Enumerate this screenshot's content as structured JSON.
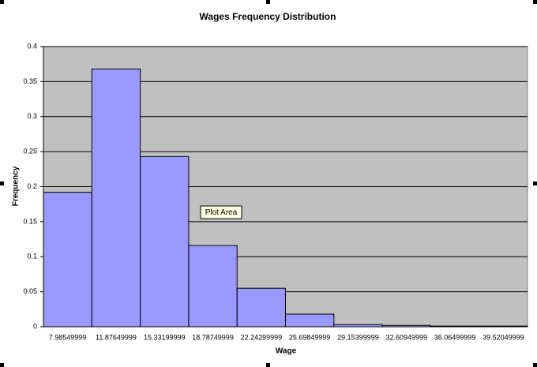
{
  "chart_data": {
    "type": "bar",
    "title": "Wages Frequency Distribution",
    "x_label": "Wage",
    "y_label": "Frequency",
    "categories": [
      "7.98549999",
      "11.87649999",
      "15.33199999",
      "18.78749999",
      "22.24299999",
      "25.69849999",
      "29.15399999",
      "32.60949999",
      "36.06499999",
      "39.52049999"
    ],
    "values": [
      0.192,
      0.368,
      0.243,
      0.116,
      0.055,
      0.018,
      0.003,
      0.002,
      0.001,
      0.001
    ],
    "color": "#9999ff",
    "plot_background": "#c0c0c0",
    "ylim": [
      0,
      0.4
    ],
    "yticks": [
      0,
      0.05,
      0.1,
      0.15,
      0.2,
      0.25,
      0.3,
      0.35,
      0.4
    ],
    "grid": true,
    "tooltip": "Plot Area"
  }
}
